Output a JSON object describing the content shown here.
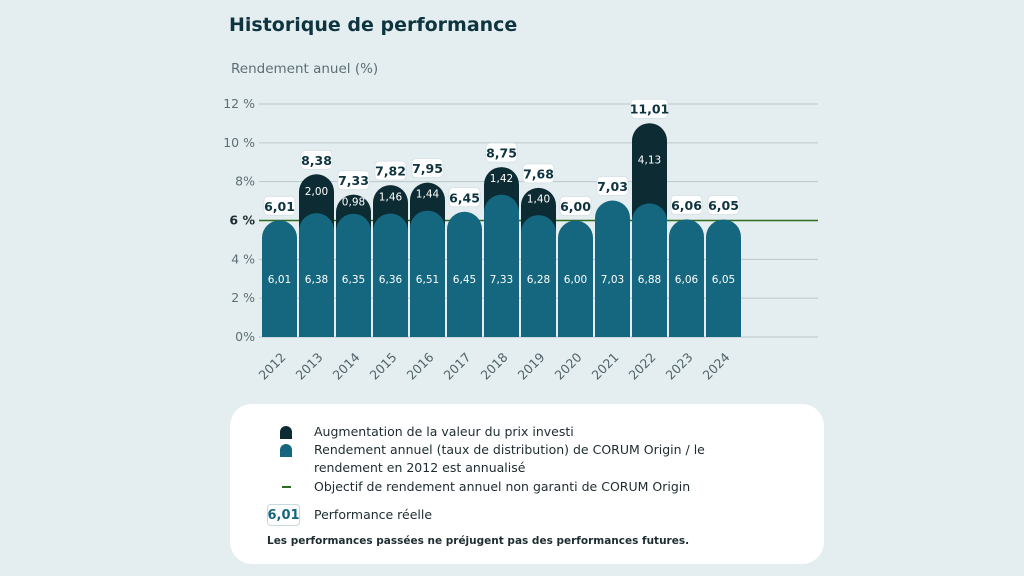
{
  "page": {
    "title": "Historique de performance",
    "ylabel": "Rendement anuel (%)"
  },
  "legend": {
    "dark_label": "Augmentation de la valeur du prix investi",
    "teal_label_line1": "Rendement annuel (taux de distribution) de CORUM Origin / le",
    "teal_label_line2": "rendement en 2012 est annualisé",
    "line_label": "Objectif de rendement annuel non garanti de CORUM Origin",
    "box_value": "6,01",
    "box_label": "Performance réelle",
    "note": "Les performances passées ne préjugent pas des performances futures."
  },
  "colors": {
    "background": "#e4eef1",
    "distribution": "#14677e",
    "capital_gain": "#0d2b33",
    "target_line": "#2e6b1e",
    "text_dark": "#0e3440"
  },
  "chart_data": {
    "type": "bar",
    "stacked": true,
    "categories": [
      "2012",
      "2013",
      "2014",
      "2015",
      "2016",
      "2017",
      "2018",
      "2019",
      "2020",
      "2021",
      "2022",
      "2023",
      "2024"
    ],
    "series": [
      {
        "name": "Rendement annuel (taux de distribution) de CORUM Origin / le rendement en 2012 est annualisé",
        "values": [
          6.01,
          6.38,
          6.35,
          6.36,
          6.51,
          6.45,
          7.33,
          6.28,
          6.0,
          7.03,
          6.88,
          6.06,
          6.05
        ],
        "labels": [
          "6,01",
          "6,38",
          "6,35",
          "6,36",
          "6,51",
          "6,45",
          "7,33",
          "6,28",
          "6,00",
          "7,03",
          "6,88",
          "6,06",
          "6,05"
        ]
      },
      {
        "name": "Augmentation de la valeur du prix investi",
        "values": [
          0,
          2.0,
          0.98,
          1.46,
          1.44,
          0,
          1.42,
          1.4,
          0,
          0,
          4.13,
          0,
          0
        ],
        "labels": [
          "",
          "2,00",
          "0,98",
          "1,46",
          "1,44",
          "",
          "1,42",
          "1,40",
          "",
          "",
          "4,13",
          "",
          ""
        ]
      }
    ],
    "totals": [
      6.01,
      8.38,
      7.33,
      7.82,
      7.95,
      6.45,
      8.75,
      7.68,
      6.0,
      7.03,
      11.01,
      6.06,
      6.05
    ],
    "total_labels": [
      "6,01",
      "8,38",
      "7,33",
      "7,82",
      "7,95",
      "6,45",
      "8,75",
      "7,68",
      "6,00",
      "7,03",
      "11,01",
      "6,06",
      "6,05"
    ],
    "target": 6,
    "yticks": [
      0,
      2,
      4,
      6,
      8,
      10,
      12
    ],
    "ytick_labels": [
      "0%",
      "2 %",
      "4 %",
      "6 %",
      "8%",
      "10 %",
      "12 %"
    ],
    "ylim": [
      0,
      12
    ],
    "ylabel": "Rendement anuel (%)",
    "grid": true
  }
}
